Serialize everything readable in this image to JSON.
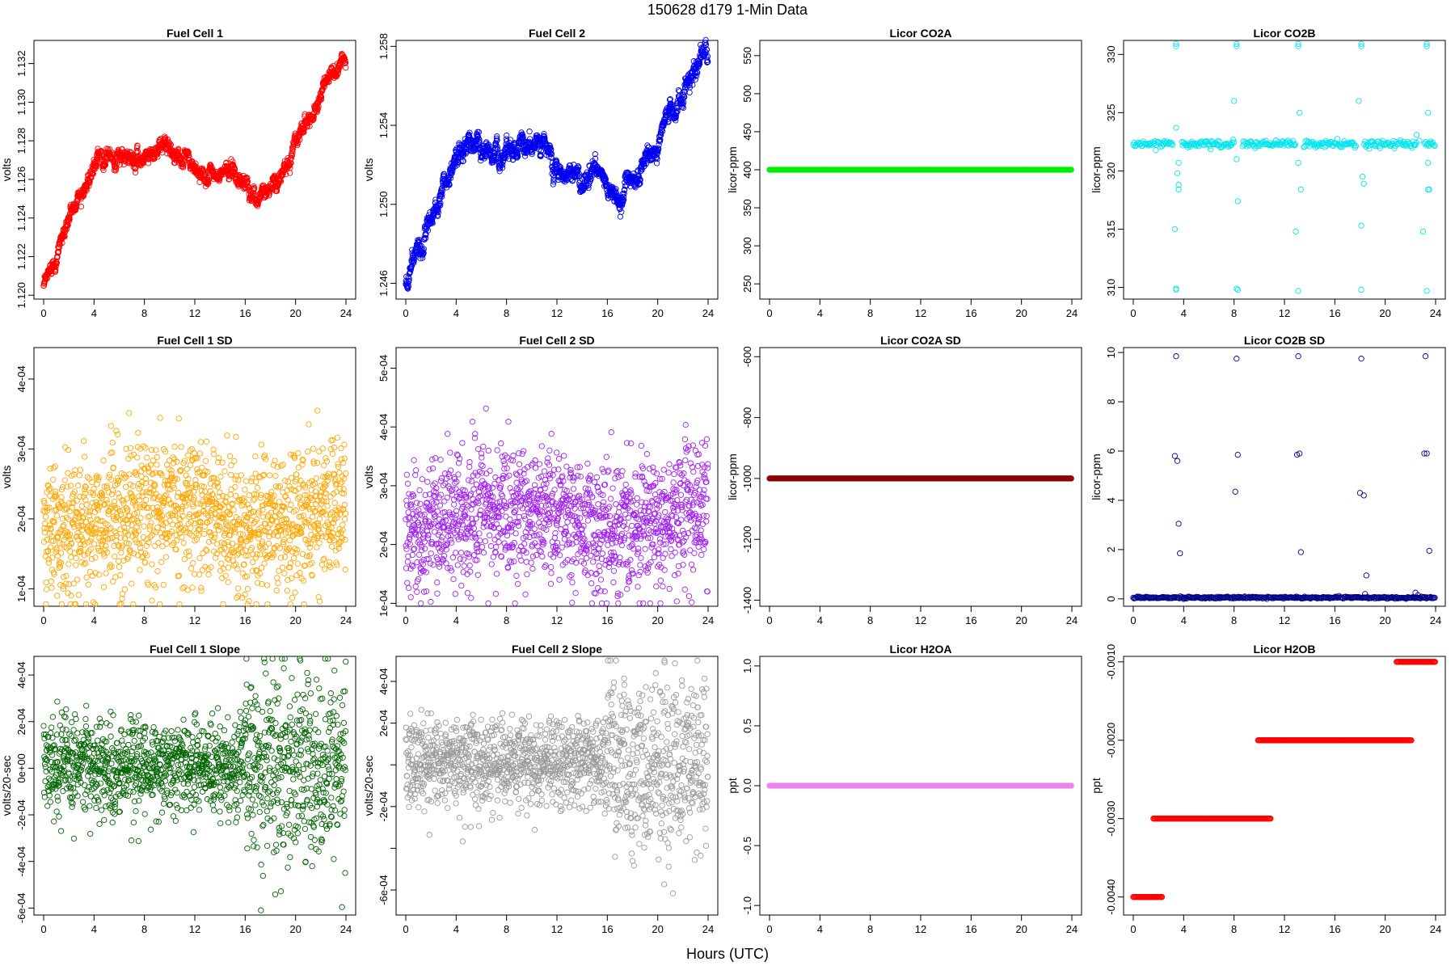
{
  "figure": {
    "title": "150628    d179    1-Min Data",
    "xlabel": "Hours (UTC)"
  },
  "chart_data": [
    {
      "id": "fc1",
      "type": "scatter",
      "title": "Fuel Cell 1",
      "ylabel": "volts",
      "color": "#ff0000",
      "xlim": [
        0,
        24
      ],
      "xticks": [
        "0",
        "4",
        "8",
        "12",
        "16",
        "20",
        "24"
      ],
      "ylim": [
        1.1198,
        1.1332
      ],
      "yticks": [
        1.12,
        1.122,
        1.124,
        1.126,
        1.128,
        1.13,
        1.132
      ],
      "ytick_labels": [
        "1.120",
        "1.122",
        "1.124",
        "1.126",
        "1.128",
        "1.130",
        "1.132"
      ],
      "pattern": "walk",
      "noise": 0.00022,
      "trend": [
        [
          0,
          1.1203
        ],
        [
          1,
          1.1222
        ],
        [
          2,
          1.124
        ],
        [
          3,
          1.1255
        ],
        [
          4,
          1.1265
        ],
        [
          5,
          1.1275
        ],
        [
          6,
          1.127
        ],
        [
          7,
          1.1269
        ],
        [
          8,
          1.1273
        ],
        [
          9,
          1.1277
        ],
        [
          10,
          1.1276
        ],
        [
          11,
          1.1272
        ],
        [
          12,
          1.1264
        ],
        [
          13,
          1.1262
        ],
        [
          14,
          1.1261
        ],
        [
          15,
          1.1266
        ],
        [
          16,
          1.1258
        ],
        [
          17,
          1.125
        ],
        [
          18,
          1.1258
        ],
        [
          19,
          1.1265
        ],
        [
          20,
          1.128
        ],
        [
          21,
          1.1292
        ],
        [
          22,
          1.1305
        ],
        [
          23,
          1.1315
        ],
        [
          24,
          1.1322
        ]
      ]
    },
    {
      "id": "fc2",
      "type": "scatter",
      "title": "Fuel Cell 2",
      "ylabel": "volts",
      "color": "#0000ee",
      "xlim": [
        0,
        24
      ],
      "xticks": [
        "0",
        "4",
        "8",
        "12",
        "16",
        "20",
        "24"
      ],
      "ylim": [
        1.2452,
        1.2583
      ],
      "yticks": [
        1.246,
        1.25,
        1.254,
        1.258
      ],
      "ytick_labels": [
        "1.246",
        "1.250",
        "1.254",
        "1.258"
      ],
      "pattern": "walk",
      "noise": 0.00028,
      "trend": [
        [
          0,
          1.246
        ],
        [
          1,
          1.2477
        ],
        [
          2,
          1.2492
        ],
        [
          3,
          1.251
        ],
        [
          4,
          1.2521
        ],
        [
          5,
          1.2532
        ],
        [
          6,
          1.2527
        ],
        [
          7,
          1.2525
        ],
        [
          8,
          1.2527
        ],
        [
          9,
          1.2531
        ],
        [
          10,
          1.2532
        ],
        [
          11,
          1.2527
        ],
        [
          12,
          1.252
        ],
        [
          13,
          1.2517
        ],
        [
          14,
          1.2512
        ],
        [
          15,
          1.2516
        ],
        [
          16,
          1.2508
        ],
        [
          17,
          1.2504
        ],
        [
          18,
          1.2511
        ],
        [
          19,
          1.252
        ],
        [
          20,
          1.2532
        ],
        [
          21,
          1.2545
        ],
        [
          22,
          1.2556
        ],
        [
          23,
          1.2568
        ],
        [
          24,
          1.2576
        ]
      ]
    },
    {
      "id": "co2a",
      "type": "scatter",
      "title": "Licor CO2A",
      "ylabel": "licor-ppm",
      "color": "#00ee00",
      "xlim": [
        0,
        24
      ],
      "xticks": [
        "0",
        "4",
        "8",
        "12",
        "16",
        "20",
        "24"
      ],
      "ylim": [
        230,
        570
      ],
      "yticks": [
        250,
        300,
        350,
        400,
        450,
        500,
        550
      ],
      "ytick_labels": [
        "250",
        "300",
        "350",
        "400",
        "450",
        "500",
        "550"
      ],
      "pattern": "constant",
      "value": 400
    },
    {
      "id": "co2b",
      "type": "scatter",
      "title": "Licor CO2B",
      "ylabel": "licor-ppm",
      "color": "#00e5ee",
      "xlim": [
        0,
        24
      ],
      "xticks": [
        "0",
        "4",
        "8",
        "12",
        "16",
        "20",
        "24"
      ],
      "ylim": [
        309,
        331.2
      ],
      "yticks": [
        310,
        315,
        320,
        325,
        330
      ],
      "ytick_labels": [
        "310",
        "315",
        "320",
        "325",
        "330"
      ],
      "pattern": "baseline",
      "base": 322.3,
      "noise": 0.15,
      "gaps": [
        3.5,
        8.3,
        13.2,
        18.0,
        22.8
      ],
      "outliers": [
        [
          3.4,
          330.9
        ],
        [
          3.4,
          330.7
        ],
        [
          3.4,
          323.7
        ],
        [
          3.6,
          320.7
        ],
        [
          3.5,
          319.8
        ],
        [
          3.6,
          318.8
        ],
        [
          3.6,
          318.4
        ],
        [
          3.3,
          315.0
        ],
        [
          3.4,
          309.8
        ],
        [
          3.4,
          309.9
        ],
        [
          8.2,
          330.9
        ],
        [
          8.2,
          330.7
        ],
        [
          8.0,
          326.0
        ],
        [
          8.2,
          321.0
        ],
        [
          8.3,
          317.4
        ],
        [
          8.3,
          309.8
        ],
        [
          8.2,
          309.9
        ],
        [
          13.1,
          330.9
        ],
        [
          13.1,
          330.7
        ],
        [
          13.2,
          325.0
        ],
        [
          13.1,
          320.7
        ],
        [
          13.3,
          318.4
        ],
        [
          12.9,
          314.8
        ],
        [
          13.1,
          309.7
        ],
        [
          18.1,
          330.9
        ],
        [
          18.1,
          330.7
        ],
        [
          17.9,
          326.0
        ],
        [
          18.2,
          319.5
        ],
        [
          18.3,
          318.9
        ],
        [
          18.1,
          315.3
        ],
        [
          18.1,
          309.8
        ],
        [
          23.3,
          330.9
        ],
        [
          23.3,
          330.7
        ],
        [
          23.4,
          325.0
        ],
        [
          23.4,
          320.7
        ],
        [
          23.4,
          318.4
        ],
        [
          23.5,
          318.4
        ],
        [
          23.0,
          314.8
        ],
        [
          23.3,
          309.7
        ],
        [
          22.5,
          323.1
        ],
        [
          22.7,
          322.6
        ]
      ]
    },
    {
      "id": "fc1sd",
      "type": "scatter",
      "title": "Fuel Cell 1 SD",
      "ylabel": "volts",
      "color": "#ffa500",
      "xlim": [
        0,
        24
      ],
      "xticks": [
        "0",
        "4",
        "8",
        "12",
        "16",
        "20",
        "24"
      ],
      "ylim": [
        7.5e-05,
        0.000445
      ],
      "yticks": [
        0.0001,
        0.0002,
        0.0003,
        0.0004
      ],
      "ytick_labels": [
        "1e-04",
        "2e-04",
        "3e-04",
        "4e-04"
      ],
      "pattern": "noise",
      "mean": [
        [
          0,
          0.000185
        ],
        [
          4,
          0.00019
        ],
        [
          8,
          0.000215
        ],
        [
          12,
          0.00022
        ],
        [
          16,
          0.000185
        ],
        [
          20,
          0.0002
        ],
        [
          24,
          0.00022
        ]
      ],
      "sd": 4.8e-05,
      "min": 7.8e-05,
      "max": 0.000435
    },
    {
      "id": "fc2sd",
      "type": "scatter",
      "title": "Fuel Cell 2 SD",
      "ylabel": "volts",
      "color": "#a020f0",
      "xlim": [
        0,
        24
      ],
      "xticks": [
        "0",
        "4",
        "8",
        "12",
        "16",
        "20",
        "24"
      ],
      "ylim": [
        9.5e-05,
        0.000535
      ],
      "yticks": [
        0.0001,
        0.0002,
        0.0003,
        0.0004,
        0.0005
      ],
      "ytick_labels": [
        "1e-04",
        "2e-04",
        "3e-04",
        "4e-04",
        "5e-04"
      ],
      "pattern": "noise",
      "mean": [
        [
          0,
          0.00022
        ],
        [
          4,
          0.00024
        ],
        [
          8,
          0.00026
        ],
        [
          12,
          0.000255
        ],
        [
          16,
          0.00022
        ],
        [
          20,
          0.00025
        ],
        [
          24,
          0.00027
        ]
      ],
      "sd": 5.5e-05,
      "min": 0.0001,
      "max": 0.000525
    },
    {
      "id": "co2asd",
      "type": "scatter",
      "title": "Licor CO2A SD",
      "ylabel": "licor-ppm",
      "color": "#8b0000",
      "xlim": [
        0,
        24
      ],
      "xticks": [
        "0",
        "4",
        "8",
        "12",
        "16",
        "20",
        "24"
      ],
      "ylim": [
        -1420,
        -570
      ],
      "yticks": [
        -1400,
        -1200,
        -1000,
        -800,
        -600
      ],
      "ytick_labels": [
        "-1400",
        "-1200",
        "-1000",
        "-800",
        "-600"
      ],
      "pattern": "constant",
      "value": -1000
    },
    {
      "id": "co2bsd",
      "type": "scatter",
      "title": "Licor CO2B SD",
      "ylabel": "licor-ppm",
      "color": "#00008b",
      "xlim": [
        0,
        24
      ],
      "xticks": [
        "0",
        "4",
        "8",
        "12",
        "16",
        "20",
        "24"
      ],
      "ylim": [
        -0.3,
        10.2
      ],
      "yticks": [
        0,
        2,
        4,
        6,
        8,
        10
      ],
      "ytick_labels": [
        "0",
        "2",
        "4",
        "6",
        "8",
        "10"
      ],
      "pattern": "baseline",
      "base": 0.05,
      "noise": 0.02,
      "gaps": [],
      "outliers": [
        [
          3.4,
          9.85
        ],
        [
          3.3,
          5.8
        ],
        [
          3.5,
          5.6
        ],
        [
          3.6,
          3.05
        ],
        [
          3.7,
          1.85
        ],
        [
          8.2,
          9.75
        ],
        [
          8.1,
          4.35
        ],
        [
          8.3,
          5.85
        ],
        [
          13.1,
          9.85
        ],
        [
          13.0,
          5.85
        ],
        [
          13.2,
          5.9
        ],
        [
          13.3,
          1.9
        ],
        [
          18.1,
          9.75
        ],
        [
          18.0,
          4.3
        ],
        [
          18.3,
          4.2
        ],
        [
          18.5,
          0.95
        ],
        [
          18.4,
          0.2
        ],
        [
          23.2,
          9.85
        ],
        [
          23.1,
          5.9
        ],
        [
          23.3,
          5.9
        ],
        [
          23.5,
          1.95
        ],
        [
          22.4,
          0.25
        ],
        [
          22.6,
          0.15
        ]
      ]
    },
    {
      "id": "fc1slope",
      "type": "scatter",
      "title": "Fuel Cell 1 Slope",
      "ylabel": "volts/20-sec",
      "color": "#006400",
      "xlim": [
        0,
        24
      ],
      "xticks": [
        "0",
        "4",
        "8",
        "12",
        "16",
        "20",
        "24"
      ],
      "ylim": [
        -0.00063,
        0.00048
      ],
      "yticks": [
        -0.0006,
        -0.0004,
        -0.0002,
        0,
        0.0002,
        0.0004
      ],
      "ytick_labels": [
        "-6e-04",
        "-4e-04",
        "-2e-04",
        "0e+00",
        "2e-04",
        "4e-04"
      ],
      "pattern": "noise",
      "mean": [
        [
          0,
          1e-05
        ],
        [
          24,
          1e-05
        ]
      ],
      "sdsteps": [
        [
          0,
          0.0001
        ],
        [
          16,
          0.0001
        ],
        [
          16.01,
          0.00019
        ],
        [
          24,
          0.0002
        ]
      ],
      "min": -0.00061,
      "max": 0.00047
    },
    {
      "id": "fc2slope",
      "type": "scatter",
      "title": "Fuel Cell 2 Slope",
      "ylabel": "volts/20-sec",
      "color": "#999999",
      "xlim": [
        0,
        24
      ],
      "xticks": [
        "0",
        "4",
        "8",
        "12",
        "16",
        "20",
        "24"
      ],
      "ylim": [
        -0.00072,
        0.00052
      ],
      "yticks": [
        -0.0006,
        -0.0004,
        -0.0002,
        0,
        0.0002,
        0.0004
      ],
      "ytick_labels": [
        "-6e-04",
        "",
        "-2e-04",
        "",
        "2e-04",
        "4e-04"
      ],
      "pattern": "noise",
      "mean": [
        [
          0,
          1e-05
        ],
        [
          24,
          1e-05
        ]
      ],
      "sdsteps": [
        [
          0,
          0.00011
        ],
        [
          16,
          0.00011
        ],
        [
          16.01,
          0.00022
        ],
        [
          24,
          0.00023
        ]
      ],
      "min": -0.00069,
      "max": 0.0005
    },
    {
      "id": "h2oa",
      "type": "scatter",
      "title": "Licor H2OA",
      "ylabel": "ppt",
      "color": "#ee82ee",
      "xlim": [
        0,
        24
      ],
      "xticks": [
        "0",
        "4",
        "8",
        "12",
        "16",
        "20",
        "24"
      ],
      "ylim": [
        -1.08,
        1.08
      ],
      "yticks": [
        -1.0,
        -0.5,
        0.0,
        0.5,
        1.0
      ],
      "ytick_labels": [
        "-1.0",
        "-0.5",
        "0.0",
        "0.5",
        "1.0"
      ],
      "pattern": "constant",
      "value": 0
    },
    {
      "id": "h2ob",
      "type": "scatter",
      "title": "Licor H2OB",
      "ylabel": "ppt",
      "color": "#ff0000",
      "xlim": [
        0,
        24
      ],
      "xticks": [
        "0",
        "4",
        "8",
        "12",
        "16",
        "20",
        "24"
      ],
      "ylim": [
        -0.00423,
        -0.00093
      ],
      "yticks": [
        -0.004,
        -0.003,
        -0.002,
        -0.001
      ],
      "ytick_labels": [
        "-0.0040",
        "-0.0030",
        "-0.0020",
        "-0.0010"
      ],
      "pattern": "steps",
      "steps": [
        [
          0,
          2.3,
          -0.004
        ],
        [
          1.6,
          10.9,
          -0.003
        ],
        [
          9.9,
          22.1,
          -0.002
        ],
        [
          20.9,
          24,
          -0.001
        ]
      ]
    }
  ]
}
